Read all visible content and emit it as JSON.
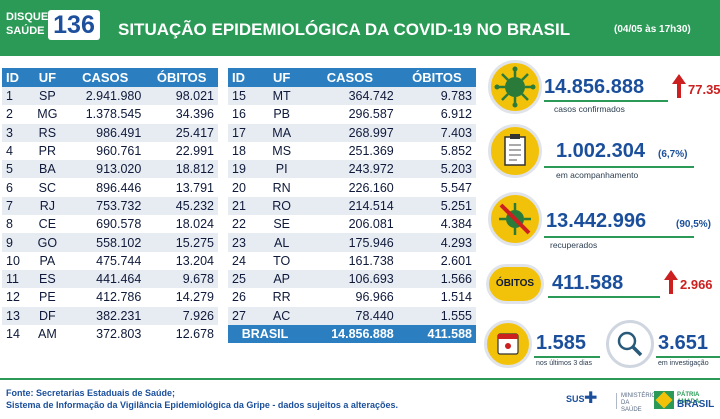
{
  "header": {
    "logo_line1": "DISQUE",
    "logo_line2": "SAÚDE",
    "logo_number": "136",
    "title": "SITUAÇÃO EPIDEMIOLÓGICA DA COVID-19 NO BRASIL",
    "date": "(04/05 às 17h30)"
  },
  "table": {
    "columns": [
      "ID",
      "UF",
      "CASOS",
      "ÓBITOS"
    ],
    "left_rows": [
      [
        "1",
        "SP",
        "2.941.980",
        "98.021"
      ],
      [
        "2",
        "MG",
        "1.378.545",
        "34.396"
      ],
      [
        "3",
        "RS",
        "986.491",
        "25.417"
      ],
      [
        "4",
        "PR",
        "960.761",
        "22.991"
      ],
      [
        "5",
        "BA",
        "913.020",
        "18.812"
      ],
      [
        "6",
        "SC",
        "896.446",
        "13.791"
      ],
      [
        "7",
        "RJ",
        "753.732",
        "45.232"
      ],
      [
        "8",
        "CE",
        "690.578",
        "18.024"
      ],
      [
        "9",
        "GO",
        "558.102",
        "15.275"
      ],
      [
        "10",
        "PA",
        "475.744",
        "13.204"
      ],
      [
        "11",
        "ES",
        "441.464",
        "9.678"
      ],
      [
        "12",
        "PE",
        "412.786",
        "14.279"
      ],
      [
        "13",
        "DF",
        "382.231",
        "7.926"
      ],
      [
        "14",
        "AM",
        "372.803",
        "12.678"
      ]
    ],
    "right_rows": [
      [
        "15",
        "MT",
        "364.742",
        "9.783"
      ],
      [
        "16",
        "PB",
        "296.587",
        "6.912"
      ],
      [
        "17",
        "MA",
        "268.997",
        "7.403"
      ],
      [
        "18",
        "MS",
        "251.369",
        "5.852"
      ],
      [
        "19",
        "PI",
        "243.972",
        "5.203"
      ],
      [
        "20",
        "RN",
        "226.160",
        "5.547"
      ],
      [
        "21",
        "RO",
        "214.514",
        "5.251"
      ],
      [
        "22",
        "SE",
        "206.081",
        "4.384"
      ],
      [
        "23",
        "AL",
        "175.946",
        "4.293"
      ],
      [
        "24",
        "TO",
        "161.738",
        "2.601"
      ],
      [
        "25",
        "AP",
        "106.693",
        "1.566"
      ],
      [
        "26",
        "RR",
        "96.966",
        "1.514"
      ],
      [
        "27",
        "AC",
        "78.440",
        "1.555"
      ]
    ],
    "total": {
      "label": "BRASIL",
      "cases": "14.856.888",
      "deaths": "411.588"
    }
  },
  "stats": {
    "confirmed": {
      "value": "14.856.888",
      "label": "casos confirmados",
      "increase": "77.35",
      "icon": "virus-icon"
    },
    "monitoring": {
      "value": "1.002.304",
      "percent": "(6,7%)",
      "label": "em acompanhamento",
      "icon": "clipboard-icon"
    },
    "recovered": {
      "value": "13.442.996",
      "percent": "(90,5%)",
      "label": "recuperados",
      "icon": "crossed-virus-icon"
    },
    "deaths": {
      "badge": "ÓBITOS",
      "value": "411.588",
      "increase": "2.966"
    },
    "last_days": {
      "value": "1.585",
      "label": "nos últimos 3 dias",
      "icon": "calendar-icon"
    },
    "investigating": {
      "value": "3.651",
      "label": "em investigação",
      "icon": "magnifier-icon"
    }
  },
  "footer": {
    "line1": "Fonte: Secretarias Estaduais de Saúde;",
    "line2": "Sistema de Informação da Vigilância Epidemiológica da Gripe - dados sujeitos a alterações.",
    "sus": "SUS",
    "ministry": "MINISTÉRIO DA SAÚDE",
    "patria": "PÁTRIA AMADA",
    "brasil": "BRASIL"
  },
  "colors": {
    "header_green": "#2a9a56",
    "table_blue": "#2b7fc1",
    "value_blue": "#1b4f9b",
    "icon_yellow": "#f2c20a",
    "increase_red": "#cc1f1f"
  }
}
